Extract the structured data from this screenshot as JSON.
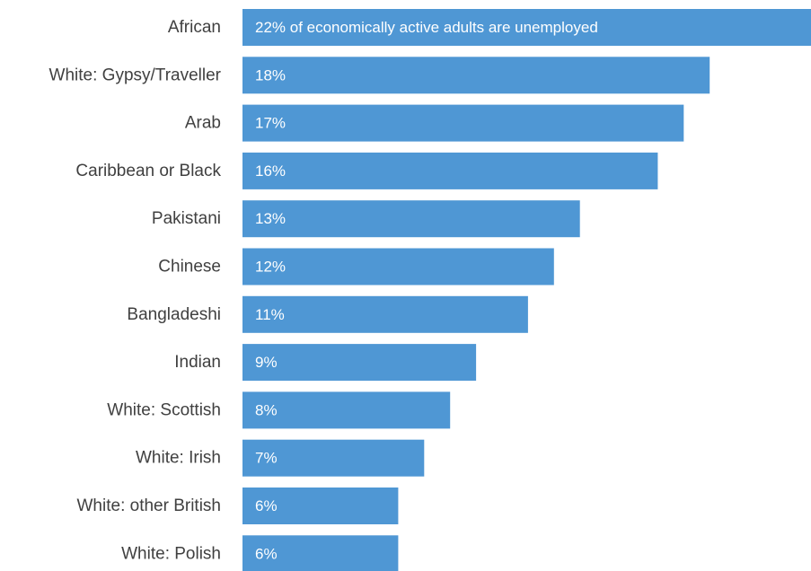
{
  "chart_data": {
    "type": "bar",
    "orientation": "horizontal",
    "categories": [
      "African",
      "White: Gypsy/Traveller",
      "Arab",
      "Caribbean or Black",
      "Pakistani",
      "Chinese",
      "Bangladeshi",
      "Indian",
      "White: Scottish",
      "White: Irish",
      "White: other British",
      "White: Polish"
    ],
    "values": [
      22,
      18,
      17,
      16,
      13,
      12,
      11,
      9,
      8,
      7,
      6,
      6
    ],
    "data_labels": [
      "22% of economically active adults are unemployed",
      "18%",
      "17%",
      "16%",
      "13%",
      "12%",
      "11%",
      "9%",
      "8%",
      "7%",
      "6%",
      "6%"
    ],
    "title": "",
    "xlabel": "",
    "ylabel": "",
    "grid": false,
    "legend": "none",
    "bar_color": "#4f97d4"
  }
}
